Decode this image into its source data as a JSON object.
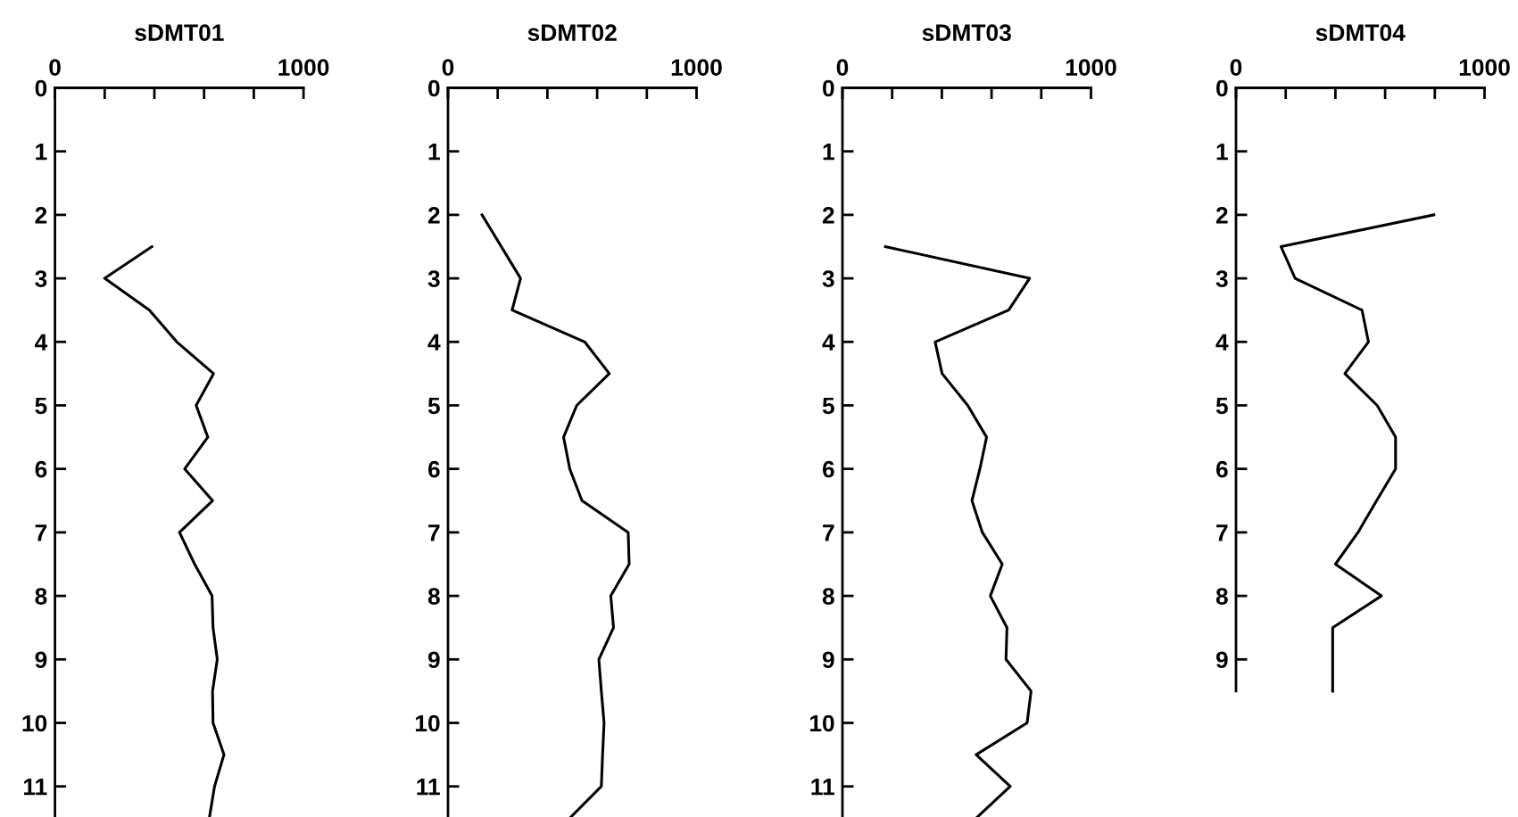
{
  "chart_data": [
    {
      "type": "line",
      "title": "sDMT01",
      "xlim": [
        0,
        1000
      ],
      "xticks": [
        0,
        {
          "value": 200,
          "label": null
        },
        {
          "value": 400,
          "label": null
        },
        {
          "value": 600,
          "label": null
        },
        {
          "value": 800,
          "label": null
        },
        1000
      ],
      "ylim": [
        11.5,
        0
      ],
      "yticks": [
        0,
        1,
        2,
        3,
        4,
        5,
        6,
        7,
        8,
        9,
        10,
        11
      ],
      "grid": false,
      "marker": "none",
      "line_style": "solid",
      "series": [
        {
          "color": "#000000",
          "x": [
            390,
            200,
            380,
            490,
            638,
            568,
            615,
            522,
            634,
            501,
            562,
            632,
            636,
            653,
            634,
            636,
            680,
            642,
            621
          ],
          "values": [
            2.5,
            3,
            3.5,
            4,
            4.5,
            5,
            5.5,
            6,
            6.5,
            7,
            7.5,
            8,
            8.5,
            9,
            9.5,
            10,
            10.5,
            11,
            11.5
          ]
        }
      ]
    },
    {
      "type": "line",
      "title": "sDMT02",
      "xlim": [
        0,
        1000
      ],
      "xticks": [
        0,
        {
          "value": 200,
          "label": null
        },
        {
          "value": 400,
          "label": null
        },
        {
          "value": 600,
          "label": null
        },
        {
          "value": 800,
          "label": null
        },
        1000
      ],
      "ylim": [
        11.5,
        0
      ],
      "yticks": [
        0,
        1,
        2,
        3,
        4,
        5,
        6,
        7,
        8,
        9,
        10,
        11
      ],
      "grid": false,
      "marker": "none",
      "line_style": "solid",
      "series": [
        {
          "color": "#000000",
          "x": [
            137,
            292,
            258,
            550,
            649,
            518,
            465,
            490,
            539,
            725,
            729,
            655,
            666,
            607,
            617,
            628,
            622,
            617,
            490
          ],
          "values": [
            2,
            3,
            3.5,
            4,
            4.5,
            5,
            5.5,
            6,
            6.5,
            7,
            7.5,
            8,
            8.5,
            9,
            9.5,
            10,
            10.5,
            11,
            11.5
          ]
        }
      ]
    },
    {
      "type": "line",
      "title": "sDMT03",
      "xlim": [
        0,
        1000
      ],
      "xticks": [
        0,
        {
          "value": 200,
          "label": null
        },
        {
          "value": 400,
          "label": null
        },
        {
          "value": 600,
          "label": null
        },
        {
          "value": 800,
          "label": null
        },
        1000
      ],
      "ylim": [
        11.5,
        0
      ],
      "yticks": [
        0,
        1,
        2,
        3,
        4,
        5,
        6,
        7,
        8,
        9,
        10,
        11
      ],
      "grid": false,
      "marker": "none",
      "line_style": "solid",
      "series": [
        {
          "color": "#000000",
          "x": [
            173,
            753,
            669,
            373,
            401,
            504,
            580,
            553,
            521,
            563,
            643,
            595,
            662,
            658,
            759,
            743,
            538,
            675,
            538
          ],
          "values": [
            2.5,
            3,
            3.5,
            4,
            4.5,
            5,
            5.5,
            6,
            6.5,
            7,
            7.5,
            8,
            8.5,
            9,
            9.5,
            10,
            10.5,
            11,
            11.5
          ]
        }
      ]
    },
    {
      "type": "line",
      "title": "sDMT04",
      "xlim": [
        0,
        1000
      ],
      "xticks": [
        0,
        {
          "value": 200,
          "label": null
        },
        {
          "value": 400,
          "label": null
        },
        {
          "value": 600,
          "label": null
        },
        {
          "value": 800,
          "label": null
        },
        1000
      ],
      "ylim": [
        9.5,
        0
      ],
      "yticks": [
        0,
        1,
        2,
        3,
        4,
        5,
        6,
        7,
        8,
        9
      ],
      "grid": false,
      "marker": "none",
      "line_style": "solid",
      "series": [
        {
          "color": "#000000",
          "x": [
            796,
            181,
            238,
            507,
            533,
            438,
            568,
            642,
            642,
            566,
            491,
            400,
            585,
            389,
            389,
            389
          ],
          "values": [
            2,
            2.5,
            3,
            3.5,
            4,
            4.5,
            5,
            5.5,
            6,
            6.5,
            7,
            7.5,
            8,
            8.5,
            9,
            9.5
          ]
        }
      ]
    }
  ]
}
